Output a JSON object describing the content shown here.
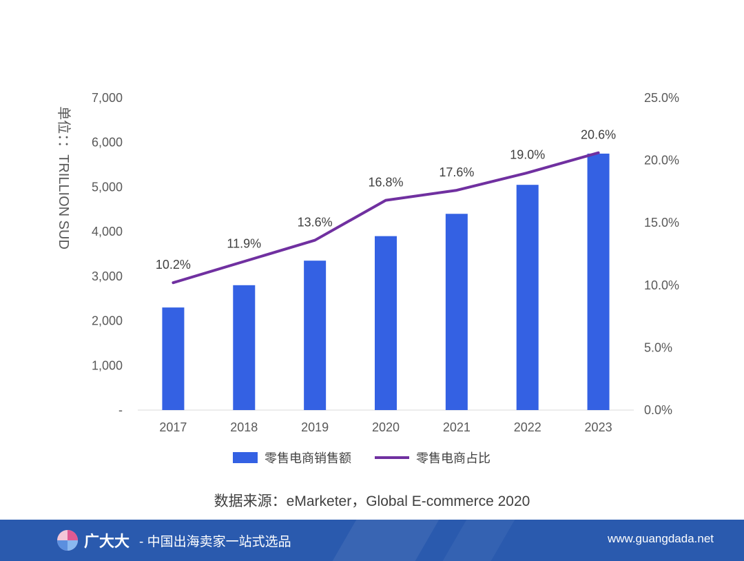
{
  "chart_data": {
    "type": "bar+line",
    "categories": [
      "2017",
      "2018",
      "2019",
      "2020",
      "2021",
      "2022",
      "2023"
    ],
    "series": [
      {
        "name": "零售电商销售额",
        "type": "bar",
        "axis": "left",
        "color": "#3461e3",
        "values": [
          2300,
          2800,
          3350,
          3900,
          4400,
          5050,
          5750
        ]
      },
      {
        "name": "零售电商占比",
        "type": "line",
        "axis": "right",
        "color": "#7030a0",
        "values": [
          10.2,
          11.9,
          13.6,
          16.8,
          17.6,
          19.0,
          20.6
        ],
        "labels": [
          "10.2%",
          "11.9%",
          "13.6%",
          "16.8%",
          "17.6%",
          "19.0%",
          "20.6%"
        ]
      }
    ],
    "ylabel": "单位：：TRILLION SUD",
    "ylim_left": [
      0,
      7000
    ],
    "yticks_left": [
      "-",
      "1,000",
      "2,000",
      "3,000",
      "4,000",
      "5,000",
      "6,000",
      "7,000"
    ],
    "ylim_right": [
      0,
      25
    ],
    "yticks_right": [
      "0.0%",
      "5.0%",
      "10.0%",
      "15.0%",
      "20.0%",
      "25.0%"
    ],
    "legend_position": "bottom",
    "grid": false
  },
  "source": "数据来源：eMarketer，Global E-commerce 2020",
  "footer": {
    "brand_name": "广大大",
    "tagline": "- 中国出海卖家一站式选品",
    "url": "www.guangdada.net",
    "background": "#2a5aae"
  }
}
